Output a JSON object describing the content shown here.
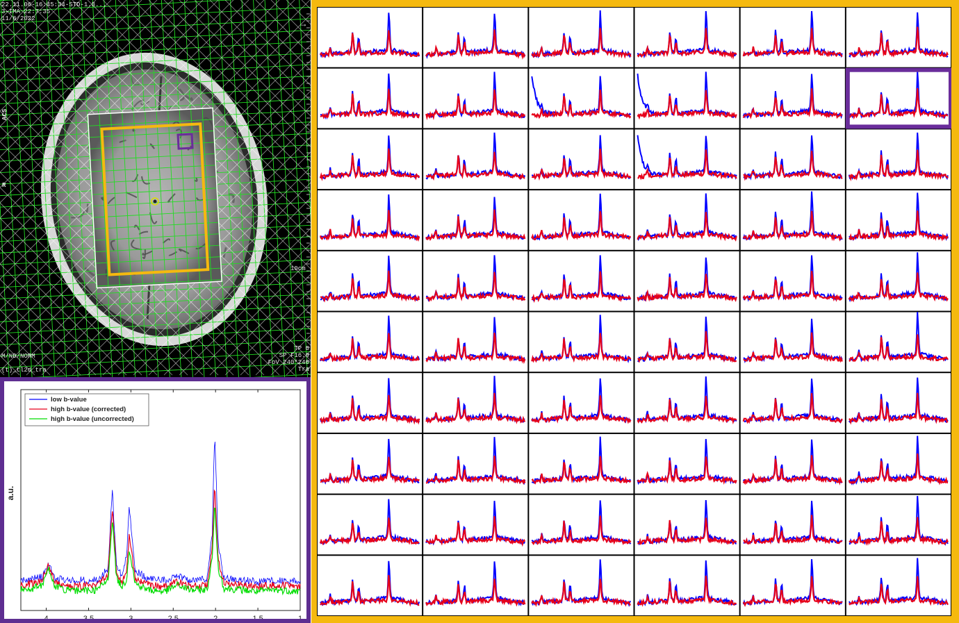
{
  "mri_image": {
    "overlays": {
      "top_left": [
        "22.11.06-16:45:34-STD-1.3...",
        "3-IMA 22:7:35",
        "11/6/2022"
      ],
      "side_orientation": "ACS",
      "side_label": "R",
      "scale_label": "10cm",
      "bottom_left": [
        "M/ND/NORM",
        "(t)_tl2d_tra"
      ],
      "bottom_right": [
        "TP 0",
        "SP F16.9",
        "FoV 240*240",
        "Tra"
      ],
      "arrow_glyph": "→"
    },
    "colors": {
      "grid": "#22dd22",
      "voi_box": "#f5b90f",
      "selected_voxel": "#6a2d9b",
      "fov_box": "#ffffff"
    }
  },
  "chart_data": [
    {
      "type": "line",
      "xlabel": "ppm",
      "ylabel": "a.u.",
      "x_reversed": true,
      "xlim": [
        4.3,
        1.0
      ],
      "xticks": [
        4,
        3.5,
        3,
        2.5,
        2,
        1.5,
        1
      ],
      "legend_placement": "top-left",
      "series": [
        {
          "name": "low b-value",
          "color": "#0000ff",
          "x": [
            4.3,
            4.15,
            4.05,
            3.97,
            3.9,
            3.7,
            3.4,
            3.27,
            3.22,
            3.17,
            3.1,
            3.05,
            3.02,
            2.95,
            2.8,
            2.6,
            2.45,
            2.3,
            2.1,
            2.04,
            2.01,
            1.97,
            1.9,
            1.7,
            1.5,
            1.3,
            1.0
          ],
          "values": [
            0.07,
            0.08,
            0.09,
            0.17,
            0.08,
            0.07,
            0.07,
            0.14,
            0.63,
            0.15,
            0.1,
            0.22,
            0.54,
            0.13,
            0.08,
            0.07,
            0.1,
            0.07,
            0.08,
            0.35,
            1.0,
            0.3,
            0.08,
            0.07,
            0.06,
            0.07,
            0.06
          ]
        },
        {
          "name": "high b-value (corrected)",
          "color": "#e6001a",
          "x": [
            4.3,
            4.15,
            4.05,
            3.97,
            3.9,
            3.7,
            3.4,
            3.27,
            3.22,
            3.17,
            3.1,
            3.05,
            3.02,
            2.95,
            2.8,
            2.6,
            2.45,
            2.3,
            2.1,
            2.04,
            2.01,
            1.97,
            1.9,
            1.7,
            1.5,
            1.3,
            1.0
          ],
          "values": [
            0.04,
            0.05,
            0.07,
            0.16,
            0.06,
            0.03,
            0.04,
            0.1,
            0.52,
            0.11,
            0.06,
            0.12,
            0.35,
            0.08,
            0.04,
            0.03,
            0.06,
            0.03,
            0.04,
            0.26,
            0.67,
            0.2,
            0.05,
            0.04,
            0.03,
            0.04,
            0.03
          ]
        },
        {
          "name": "high b-value (uncorrected)",
          "color": "#00dd00",
          "x": [
            4.3,
            4.15,
            4.05,
            3.97,
            3.9,
            3.7,
            3.4,
            3.27,
            3.22,
            3.17,
            3.1,
            3.05,
            3.02,
            2.95,
            2.8,
            2.6,
            2.45,
            2.3,
            2.1,
            2.04,
            2.01,
            1.97,
            1.9,
            1.7,
            1.5,
            1.3,
            1.0
          ],
          "values": [
            0.01,
            0.02,
            0.04,
            0.14,
            0.03,
            0.0,
            0.01,
            0.07,
            0.45,
            0.08,
            0.03,
            0.08,
            0.27,
            0.05,
            0.01,
            0.0,
            0.04,
            0.01,
            0.01,
            0.2,
            0.55,
            0.15,
            0.02,
            0.01,
            0.0,
            0.01,
            0.0
          ]
        }
      ]
    },
    {
      "type": "line",
      "layout": "grid of spectra",
      "rows": 10,
      "cols": 6,
      "highlighted_cell": {
        "row": 2,
        "col": 6
      },
      "highlight_color": "#6a2d9b",
      "frame_color": "#f5b90f",
      "series_colors": {
        "low": "#0000ff",
        "high": "#e6001a"
      },
      "peak_template": {
        "x": [
          4.3,
          3.97,
          3.22,
          3.02,
          2.01,
          1.0
        ],
        "low_b": [
          0.07,
          0.17,
          0.55,
          0.42,
          1.0,
          0.06
        ],
        "high_b": [
          0.04,
          0.15,
          0.48,
          0.3,
          0.62,
          0.03
        ]
      },
      "low_b_peak_amplitude": [
        [
          1.0,
          1.0,
          1.0,
          1.0,
          1.0,
          1.0
        ],
        [
          1.0,
          1.0,
          0.95,
          1.0,
          1.0,
          1.05
        ],
        [
          1.0,
          1.0,
          1.0,
          1.0,
          1.0,
          1.05
        ],
        [
          1.0,
          1.0,
          1.0,
          1.0,
          1.05,
          1.05
        ],
        [
          1.0,
          1.0,
          1.0,
          1.0,
          1.0,
          1.05
        ],
        [
          1.0,
          1.0,
          1.0,
          1.0,
          1.0,
          1.1
        ],
        [
          1.0,
          1.0,
          1.0,
          1.0,
          1.0,
          1.05
        ],
        [
          1.0,
          1.0,
          1.0,
          1.0,
          1.0,
          1.05
        ],
        [
          1.0,
          1.0,
          1.0,
          1.0,
          1.0,
          1.05
        ],
        [
          1.0,
          1.0,
          1.0,
          1.0,
          1.0,
          1.05
        ]
      ],
      "artifact_cells": [
        {
          "row": 2,
          "col": 3
        },
        {
          "row": 2,
          "col": 4
        },
        {
          "row": 3,
          "col": 4
        }
      ]
    }
  ]
}
